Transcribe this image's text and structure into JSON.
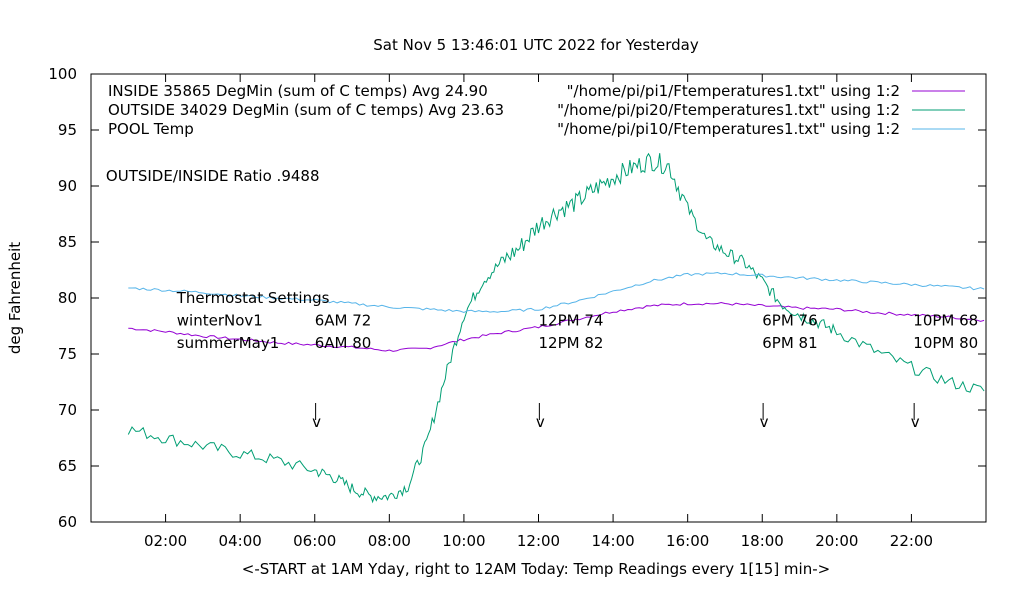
{
  "chart_data": {
    "type": "line",
    "title": "Sat Nov  5 13:46:01 UTC 2022 for Yesterday",
    "xlabel": "<-START at 1AM Yday, right to 12AM Today:  Temp Readings every 1[15] min->",
    "ylabel": "deg Fahrenheit",
    "xlim": [
      0.0,
      24.0
    ],
    "ylim": [
      60,
      100
    ],
    "x_ticks": [
      {
        "x": 2,
        "label": "02:00"
      },
      {
        "x": 4,
        "label": "04:00"
      },
      {
        "x": 6,
        "label": "06:00"
      },
      {
        "x": 8,
        "label": "08:00"
      },
      {
        "x": 10,
        "label": "10:00"
      },
      {
        "x": 12,
        "label": "12:00"
      },
      {
        "x": 14,
        "label": "14:00"
      },
      {
        "x": 16,
        "label": "16:00"
      },
      {
        "x": 18,
        "label": "18:00"
      },
      {
        "x": 20,
        "label": "20:00"
      },
      {
        "x": 22,
        "label": "22:00"
      }
    ],
    "y_ticks": [
      60,
      65,
      70,
      75,
      80,
      85,
      90,
      95,
      100
    ],
    "grid": false,
    "legend_position": "top",
    "series": [
      {
        "name": "\"/home/pi/pi1/Ftemperatures1.txt\" using 1:2",
        "legend_label": "INSIDE 35865 DegMin (sum of C temps) Avg 24.90",
        "color": "#9400d3",
        "x": [
          1.0,
          2.0,
          3.0,
          4.0,
          5.0,
          6.0,
          7.0,
          8.0,
          9.0,
          10.0,
          11.0,
          12.0,
          13.0,
          14.0,
          15.0,
          16.0,
          17.0,
          18.0,
          19.0,
          20.0,
          21.0,
          22.0,
          23.0,
          23.95
        ],
        "y": [
          77.3,
          77.0,
          76.6,
          76.3,
          76.0,
          75.8,
          75.6,
          75.3,
          75.5,
          76.3,
          76.9,
          77.4,
          78.1,
          78.8,
          79.3,
          79.5,
          79.5,
          79.3,
          79.1,
          79.0,
          78.7,
          78.5,
          78.3,
          78.0
        ]
      },
      {
        "name": "\"/home/pi/pi20/Ftemperatures1.txt\" using 1:2",
        "legend_label": "OUTSIDE 34029 DegMin (sum of C temps) Avg 23.63",
        "color": "#009e73",
        "x": [
          1.0,
          2.0,
          3.0,
          4.0,
          5.0,
          6.0,
          6.5,
          7.0,
          7.5,
          8.0,
          8.5,
          9.0,
          9.5,
          10.0,
          10.5,
          11.0,
          11.5,
          12.0,
          12.5,
          13.0,
          13.5,
          14.0,
          14.5,
          15.0,
          15.5,
          16.0,
          16.5,
          17.0,
          17.5,
          18.0,
          18.5,
          19.0,
          19.5,
          20.0,
          21.0,
          22.0,
          23.0,
          23.95
        ],
        "y": [
          68.3,
          67.5,
          66.8,
          66.1,
          65.5,
          64.6,
          64.0,
          63.0,
          62.3,
          62.3,
          63.2,
          67.0,
          73.0,
          78.5,
          81.5,
          83.2,
          84.5,
          86.5,
          87.8,
          88.5,
          89.7,
          90.8,
          91.6,
          92.3,
          91.8,
          88.0,
          85.2,
          84.1,
          83.2,
          81.5,
          79.5,
          78.5,
          77.8,
          77.0,
          75.3,
          73.8,
          72.5,
          71.7
        ]
      },
      {
        "name": "\"/home/pi/pi10/Ftemperatures1.txt\" using 1:2",
        "legend_label": "POOL Temp",
        "color": "#56b4e9",
        "x": [
          1.0,
          2.0,
          3.0,
          4.0,
          5.0,
          6.0,
          7.0,
          8.0,
          9.0,
          10.0,
          11.0,
          12.0,
          13.0,
          14.0,
          15.0,
          16.0,
          17.0,
          18.0,
          19.0,
          20.0,
          21.0,
          22.0,
          23.0,
          23.95
        ],
        "y": [
          80.9,
          80.7,
          80.5,
          80.2,
          80.0,
          79.8,
          79.5,
          79.2,
          79.0,
          78.8,
          78.8,
          79.0,
          79.7,
          80.6,
          81.5,
          82.1,
          82.2,
          82.0,
          81.8,
          81.6,
          81.4,
          81.2,
          81.0,
          80.8
        ]
      }
    ],
    "annotations": [
      {
        "text": "OUTSIDE/INSIDE Ratio .9488",
        "x": 0.4,
        "y": 90.9
      },
      {
        "text": "Thermostat Settings",
        "x": 2.3,
        "y": 80.0
      },
      {
        "text": "winterNov1",
        "x": 2.3,
        "y": 78.0
      },
      {
        "text": "summerMay1",
        "x": 2.3,
        "y": 76.0
      },
      {
        "text": "6AM 72",
        "x": 6.0,
        "y": 78.0
      },
      {
        "text": "6AM 80",
        "x": 6.0,
        "y": 76.0
      },
      {
        "text": "12PM 74",
        "x": 12.0,
        "y": 78.0
      },
      {
        "text": "12PM 82",
        "x": 12.0,
        "y": 76.0
      },
      {
        "text": "6PM 76",
        "x": 18.0,
        "y": 78.0
      },
      {
        "text": "6PM 81",
        "x": 18.0,
        "y": 76.0
      },
      {
        "text": "10PM 68",
        "x": 22.05,
        "y": 78.0
      },
      {
        "text": "10PM 80",
        "x": 22.05,
        "y": 76.0
      }
    ],
    "markers": [
      {
        "text": "v",
        "x": 6.05
      },
      {
        "text": "v",
        "x": 12.05
      },
      {
        "text": "v",
        "x": 18.05
      },
      {
        "text": "v",
        "x": 22.1
      }
    ]
  }
}
